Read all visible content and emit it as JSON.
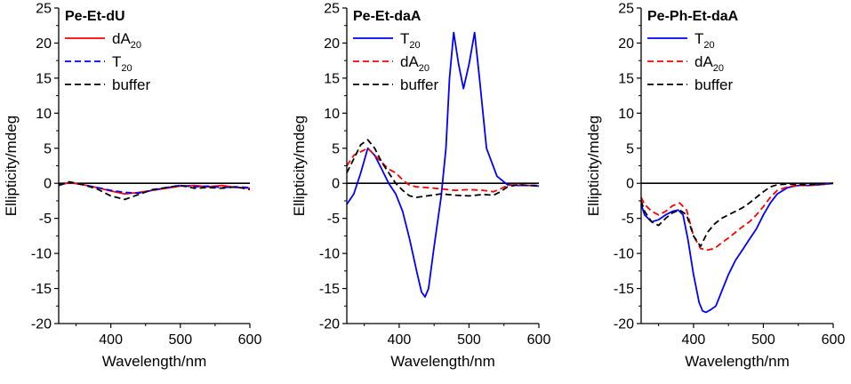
{
  "chart_data": [
    {
      "type": "line",
      "title": "Pe-Et-dU",
      "xlabel": "Wavelength/nm",
      "ylabel": "Ellipticity/mdeg",
      "xlim": [
        325,
        600
      ],
      "ylim": [
        -20,
        25
      ],
      "xticks": [
        400,
        500,
        600
      ],
      "yticks": [
        -20,
        -15,
        -10,
        -5,
        0,
        5,
        10,
        15,
        20,
        25
      ],
      "legend_position": "top-left",
      "legend": [
        {
          "label": "dA",
          "sub": "20",
          "color": "#ff0000",
          "dash": "solid"
        },
        {
          "label": "T",
          "sub": "20",
          "color": "#0000ff",
          "dash": "dashed"
        },
        {
          "label": "buffer",
          "sub": "",
          "color": "#000000",
          "dash": "dashed"
        }
      ],
      "series": [
        {
          "name": "dA20",
          "color": "#ff0000",
          "dash": "solid",
          "x": [
            325,
            340,
            360,
            380,
            400,
            420,
            440,
            460,
            480,
            500,
            520,
            540,
            560,
            580,
            600
          ],
          "y": [
            -0.3,
            0.1,
            -0.2,
            -0.6,
            -1.1,
            -1.5,
            -1.3,
            -1.0,
            -0.7,
            -0.4,
            -0.3,
            -0.5,
            -0.3,
            -0.6,
            -0.7
          ]
        },
        {
          "name": "T20",
          "color": "#0000ff",
          "dash": "dashed",
          "x": [
            325,
            340,
            360,
            380,
            400,
            420,
            440,
            460,
            480,
            500,
            520,
            540,
            560,
            580,
            600
          ],
          "y": [
            -0.3,
            0.2,
            -0.2,
            -0.6,
            -1.0,
            -1.3,
            -1.4,
            -1.0,
            -0.6,
            -0.3,
            -0.5,
            -0.4,
            -0.6,
            -0.5,
            -0.6
          ]
        },
        {
          "name": "buffer",
          "color": "#000000",
          "dash": "dashed",
          "x": [
            325,
            340,
            360,
            380,
            400,
            420,
            440,
            460,
            480,
            500,
            520,
            540,
            560,
            580,
            600
          ],
          "y": [
            -0.2,
            0.2,
            -0.2,
            -0.8,
            -1.8,
            -2.3,
            -1.6,
            -0.9,
            -0.6,
            -0.3,
            -0.7,
            -0.6,
            -0.7,
            -0.5,
            -0.9
          ]
        }
      ]
    },
    {
      "type": "line",
      "title": "Pe-Et-daA",
      "xlabel": "Wavelength/nm",
      "ylabel": "Ellipticity/mdeg",
      "xlim": [
        325,
        600
      ],
      "ylim": [
        -20,
        25
      ],
      "xticks": [
        400,
        500,
        600
      ],
      "yticks": [
        -20,
        -15,
        -10,
        -5,
        0,
        5,
        10,
        15,
        20,
        25
      ],
      "legend_position": "top-left",
      "legend": [
        {
          "label": "T",
          "sub": "20",
          "color": "#0000ff",
          "dash": "solid"
        },
        {
          "label": "dA",
          "sub": "20",
          "color": "#ff0000",
          "dash": "dashed"
        },
        {
          "label": "buffer",
          "sub": "",
          "color": "#000000",
          "dash": "dashed"
        }
      ],
      "series": [
        {
          "name": "T20",
          "color": "#0000ff",
          "dash": "solid",
          "x": [
            325,
            335,
            345,
            355,
            365,
            375,
            385,
            395,
            405,
            415,
            425,
            432,
            437,
            442,
            450,
            460,
            467,
            472,
            478,
            485,
            492,
            500,
            508,
            515,
            525,
            540,
            555,
            570,
            585,
            600
          ],
          "y": [
            -3.0,
            -1.5,
            1.5,
            5.0,
            4.0,
            2.0,
            0.0,
            -1.5,
            -4.0,
            -8.0,
            -12.5,
            -15.5,
            -16.2,
            -15.0,
            -9.0,
            -2.0,
            5.0,
            15.0,
            21.5,
            17.0,
            13.5,
            17.0,
            21.5,
            15.0,
            5.0,
            1.0,
            -0.2,
            -0.3,
            -0.3,
            -0.4
          ]
        },
        {
          "name": "dA20",
          "color": "#ff0000",
          "dash": "dashed",
          "x": [
            325,
            335,
            345,
            355,
            365,
            375,
            385,
            395,
            405,
            415,
            425,
            440,
            460,
            480,
            500,
            520,
            535,
            545,
            555,
            570,
            585,
            600
          ],
          "y": [
            2.5,
            4.0,
            4.5,
            5.0,
            4.0,
            3.0,
            2.0,
            1.5,
            0.5,
            -0.3,
            -0.5,
            -0.6,
            -0.8,
            -1.0,
            -0.9,
            -1.0,
            -1.2,
            -0.8,
            -0.3,
            -0.2,
            -0.3,
            -0.3
          ]
        },
        {
          "name": "buffer",
          "color": "#000000",
          "dash": "dashed",
          "x": [
            325,
            335,
            345,
            355,
            365,
            375,
            385,
            395,
            405,
            415,
            425,
            440,
            460,
            480,
            500,
            520,
            535,
            545,
            555,
            570,
            585,
            600
          ],
          "y": [
            1.5,
            3.5,
            5.5,
            6.2,
            5.0,
            3.0,
            1.5,
            0.0,
            -1.0,
            -1.8,
            -2.0,
            -1.8,
            -1.5,
            -1.7,
            -1.8,
            -1.6,
            -1.7,
            -1.2,
            -0.5,
            -0.2,
            -0.3,
            -0.3
          ]
        }
      ]
    },
    {
      "type": "line",
      "title": "Pe-Ph-Et-daA",
      "xlabel": "Wavelength/nm",
      "ylabel": "Ellipticity/mdeg",
      "xlim": [
        325,
        600
      ],
      "ylim": [
        -20,
        25
      ],
      "xticks": [
        400,
        500,
        600
      ],
      "yticks": [
        -20,
        -15,
        -10,
        -5,
        0,
        5,
        10,
        15,
        20,
        25
      ],
      "legend_position": "top-left",
      "legend": [
        {
          "label": "T",
          "sub": "20",
          "color": "#0000ff",
          "dash": "solid"
        },
        {
          "label": "dA",
          "sub": "20",
          "color": "#ff0000",
          "dash": "dashed"
        },
        {
          "label": "buffer",
          "sub": "",
          "color": "#000000",
          "dash": "dashed"
        }
      ],
      "series": [
        {
          "name": "T20",
          "color": "#0000ff",
          "dash": "solid",
          "x": [
            325,
            330,
            340,
            350,
            360,
            370,
            378,
            385,
            392,
            400,
            408,
            413,
            418,
            425,
            432,
            440,
            450,
            460,
            470,
            480,
            490,
            500,
            510,
            520,
            535,
            550,
            565,
            580,
            600
          ],
          "y": [
            -3.0,
            -4.5,
            -5.5,
            -5.2,
            -4.5,
            -4.0,
            -3.8,
            -4.5,
            -8.0,
            -13.0,
            -17.0,
            -18.2,
            -18.4,
            -18.0,
            -17.5,
            -15.5,
            -13.0,
            -11.0,
            -9.5,
            -8.0,
            -6.5,
            -4.5,
            -2.8,
            -1.5,
            -0.6,
            -0.3,
            -0.3,
            -0.2,
            0.0
          ]
        },
        {
          "name": "dA20",
          "color": "#ff0000",
          "dash": "dashed",
          "x": [
            325,
            330,
            340,
            350,
            360,
            370,
            380,
            390,
            400,
            410,
            420,
            430,
            440,
            450,
            460,
            470,
            480,
            490,
            500,
            510,
            520,
            535,
            550,
            565,
            580,
            600
          ],
          "y": [
            -2.0,
            -3.0,
            -4.0,
            -4.5,
            -4.0,
            -3.2,
            -2.8,
            -3.8,
            -7.5,
            -9.3,
            -9.5,
            -9.3,
            -8.5,
            -7.8,
            -7.0,
            -6.2,
            -5.5,
            -4.5,
            -3.3,
            -2.0,
            -1.0,
            -0.5,
            -0.3,
            -0.3,
            -0.2,
            0.0
          ]
        },
        {
          "name": "buffer",
          "color": "#000000",
          "dash": "dashed",
          "x": [
            325,
            330,
            340,
            350,
            360,
            370,
            380,
            390,
            400,
            410,
            420,
            430,
            440,
            450,
            460,
            470,
            480,
            490,
            500,
            510,
            520,
            535,
            550,
            565,
            580,
            600
          ],
          "y": [
            -2.5,
            -4.0,
            -5.5,
            -6.0,
            -5.0,
            -4.2,
            -3.8,
            -4.5,
            -7.5,
            -9.0,
            -7.0,
            -5.8,
            -5.0,
            -4.5,
            -4.0,
            -3.5,
            -2.8,
            -2.0,
            -1.2,
            -0.5,
            -0.2,
            -0.1,
            -0.2,
            -0.2,
            -0.1,
            0.0
          ]
        }
      ]
    }
  ]
}
